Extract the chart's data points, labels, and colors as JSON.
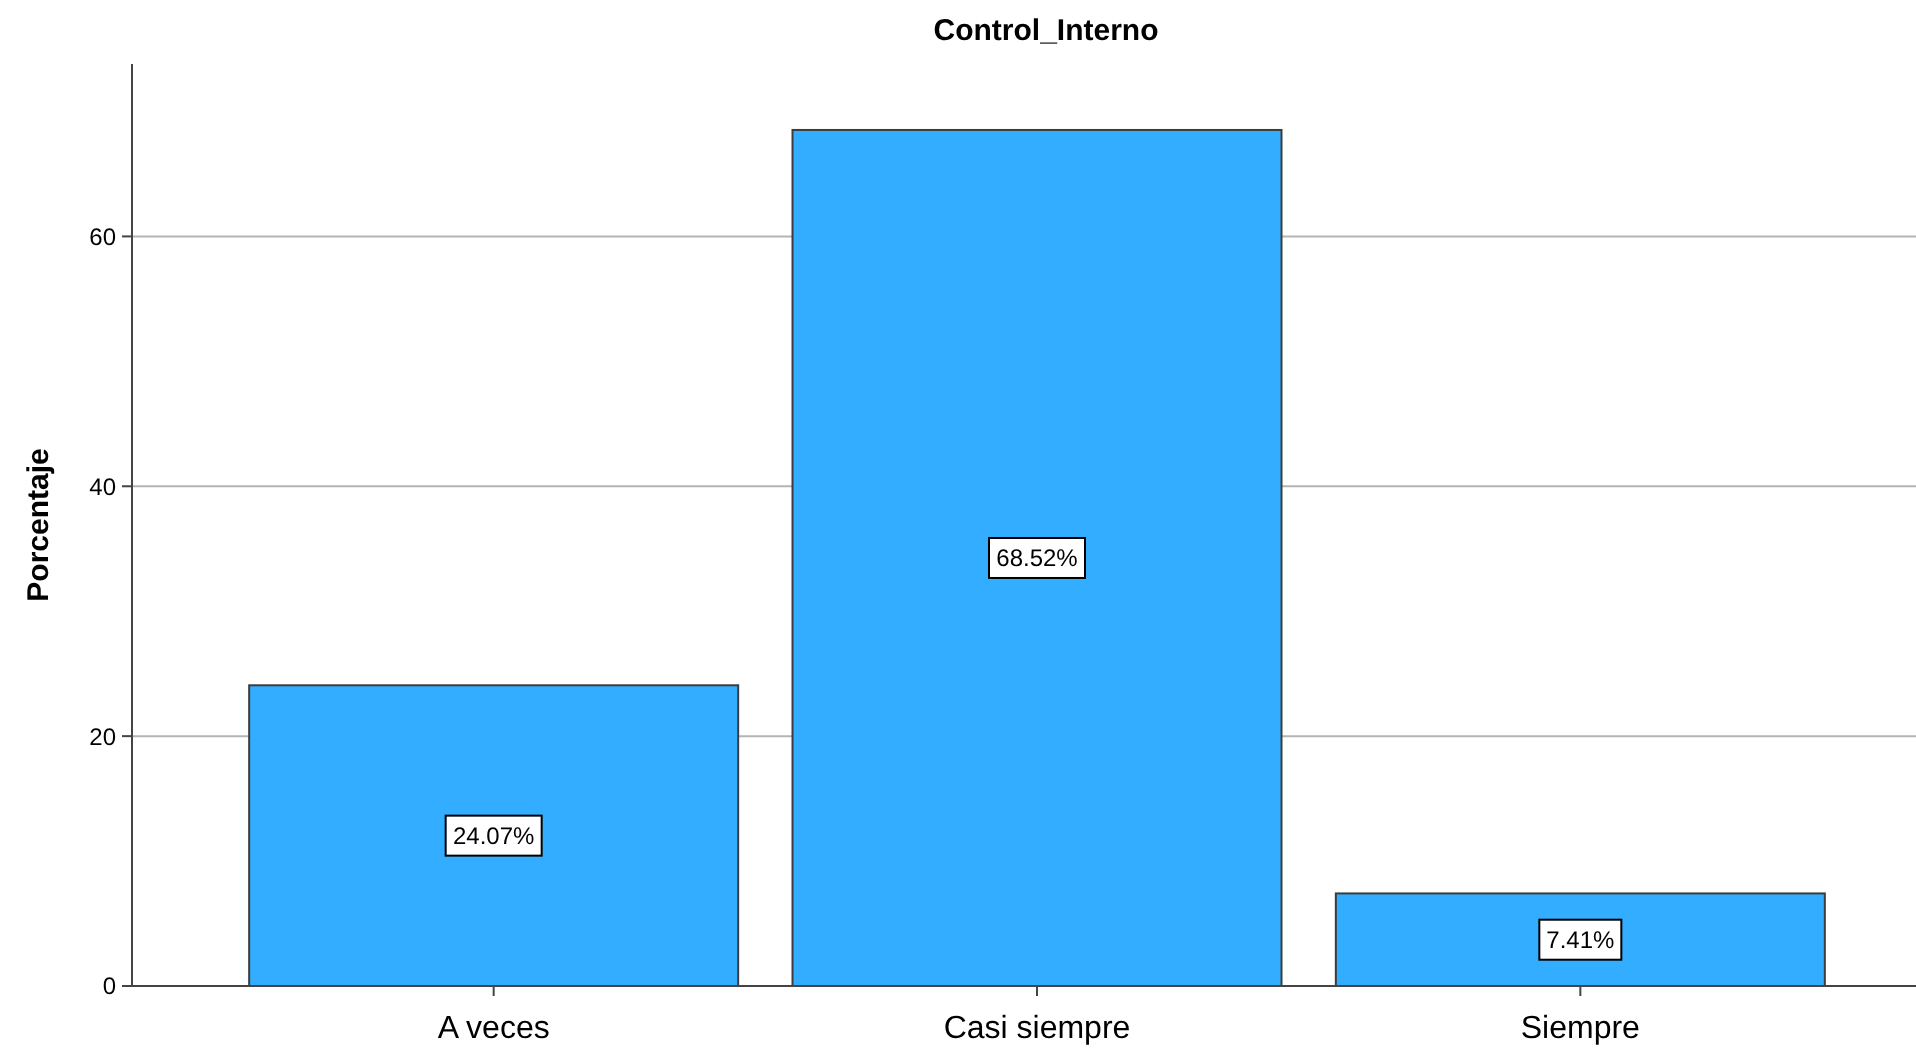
{
  "chart_data": {
    "type": "bar",
    "title": "Control_Interno",
    "ylabel": "Porcentaje",
    "categories": [
      "A veces",
      "Casi siempre",
      "Siempre"
    ],
    "values": [
      24.07,
      68.52,
      7.41
    ],
    "color": "#33adff",
    "value_labels": [
      "24.07%",
      "68.52%",
      "7.41%"
    ],
    "ylim": [
      0,
      73.8
    ],
    "yticks": [
      0,
      20,
      40,
      60
    ],
    "grid": "y"
  }
}
